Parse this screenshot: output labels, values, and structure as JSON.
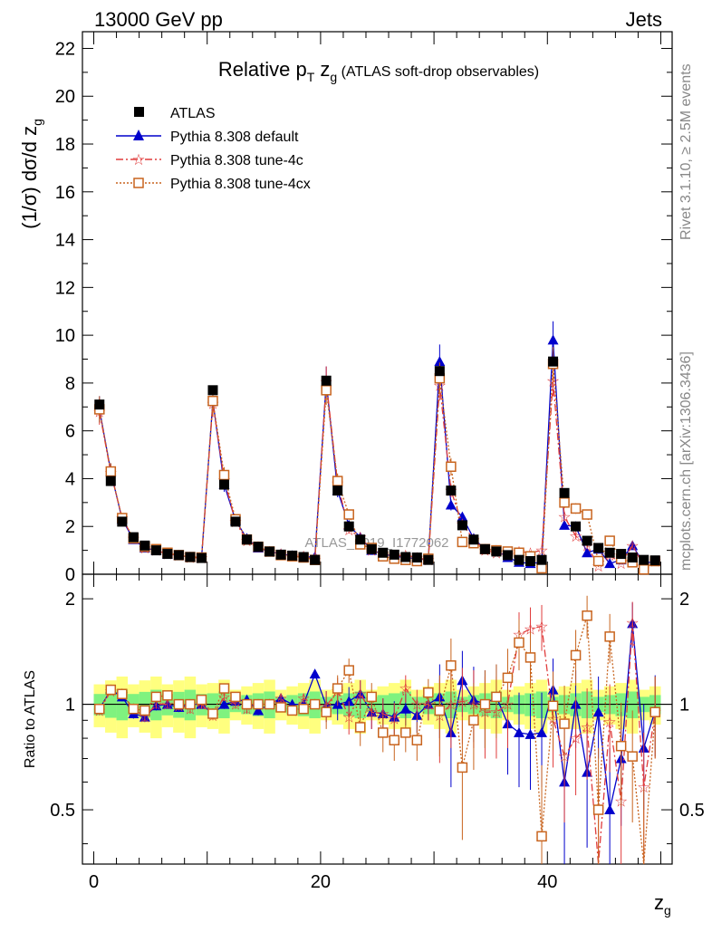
{
  "header": {
    "energy": "13000 GeV pp",
    "category": "Jets"
  },
  "side_labels": {
    "rivet": "Rivet 3.1.10, ≥ 2.5M events",
    "mcplots": "mcplots.cern.ch [arXiv:1306.3436]"
  },
  "watermark": "ATLAS_2019_I1772062",
  "chart_data": {
    "type": "scatter",
    "title": {
      "main": "Relative p",
      "sub_t": "T",
      "mid": " z",
      "sub_g": "g",
      "tail": " (ATLAS soft-drop observables)"
    },
    "ylabel_main": {
      "text": "(1/σ) dσ/d z",
      "sub": "g"
    },
    "ylabel_ratio": "Ratio to ATLAS",
    "xlabel": {
      "text": "z",
      "sub": "g"
    },
    "xlim": [
      -1,
      51
    ],
    "ylim": [
      0,
      22.7
    ],
    "ratio_ylim": [
      0.35,
      2.35
    ],
    "x_ticks": [
      "0",
      "20",
      "40"
    ],
    "y_ticks": [
      "0",
      "2",
      "4",
      "6",
      "8",
      "10",
      "12",
      "14",
      "16",
      "18",
      "20",
      "22"
    ],
    "ratio_ticks": [
      "0.5",
      "1",
      "2"
    ],
    "legend": [
      "ATLAS",
      "Pythia 8.308 default",
      "Pythia 8.308 tune-4c",
      "Pythia 8.308 tune-4cx"
    ],
    "colors": {
      "atlas": "#000000",
      "default": "#0000cc",
      "tune4c": "#e03c3c",
      "tune4cx": "#c8641e",
      "band_inner": "#7ff27f",
      "band_outer": "#ffff7f"
    },
    "x": [
      0.5,
      1.5,
      2.5,
      3.5,
      4.5,
      5.5,
      6.5,
      7.5,
      8.5,
      9.5,
      10.5,
      11.5,
      12.5,
      13.5,
      14.5,
      15.5,
      16.5,
      17.5,
      18.5,
      19.5,
      20.5,
      21.5,
      22.5,
      23.5,
      24.5,
      25.5,
      26.5,
      27.5,
      28.5,
      29.5,
      30.5,
      31.5,
      32.5,
      33.5,
      34.5,
      35.5,
      36.5,
      37.5,
      38.5,
      39.5,
      40.5,
      41.5,
      42.5,
      43.5,
      44.5,
      45.5,
      46.5,
      47.5,
      48.5,
      49.5
    ],
    "series": [
      {
        "name": "ATLAS",
        "values": [
          7.1,
          3.9,
          2.2,
          1.55,
          1.2,
          1.0,
          0.85,
          0.8,
          0.72,
          0.68,
          7.7,
          3.75,
          2.2,
          1.45,
          1.15,
          0.95,
          0.82,
          0.78,
          0.72,
          0.6,
          8.1,
          3.5,
          2.0,
          1.45,
          1.05,
          0.9,
          0.82,
          0.72,
          0.7,
          0.6,
          8.5,
          3.5,
          2.05,
          1.45,
          1.05,
          0.95,
          0.8,
          0.6,
          0.55,
          0.6,
          8.9,
          3.4,
          2.0,
          1.4,
          1.1,
          0.9,
          0.85,
          0.7,
          0.6,
          0.58
        ]
      },
      {
        "name": "Pythia 8.308 default",
        "values": [
          6.9,
          4.3,
          2.3,
          1.45,
          1.1,
          1.0,
          0.85,
          0.78,
          0.72,
          0.68,
          7.25,
          3.75,
          2.25,
          1.5,
          1.1,
          0.95,
          0.85,
          0.78,
          0.72,
          0.73,
          8.05,
          3.5,
          2.05,
          1.55,
          1.0,
          0.85,
          0.75,
          0.7,
          0.65,
          0.6,
          8.9,
          2.9,
          2.4,
          1.5,
          1.05,
          1.0,
          0.7,
          0.5,
          0.45,
          0.5,
          9.8,
          2.05,
          2.0,
          0.9,
          1.05,
          0.45,
          0.6,
          1.2,
          0.45,
          0.55
        ]
      },
      {
        "name": "Pythia 8.308 tune-4c",
        "values": [
          6.8,
          4.25,
          2.35,
          1.5,
          1.1,
          1.0,
          0.85,
          0.8,
          0.7,
          0.68,
          7.15,
          3.95,
          2.2,
          1.4,
          1.15,
          0.95,
          0.85,
          0.75,
          0.75,
          0.6,
          8.05,
          3.8,
          1.85,
          1.55,
          1.0,
          0.85,
          0.75,
          0.8,
          0.7,
          0.6,
          7.9,
          3.5,
          2.1,
          1.45,
          1.0,
          0.9,
          0.8,
          0.95,
          0.9,
          1.0,
          8.1,
          2.4,
          1.6,
          1.2,
          0.35,
          0.8,
          0.45,
          1.2,
          0.35,
          0.55
        ]
      },
      {
        "name": "Pythia 8.308 tune-4cx",
        "values": [
          6.9,
          4.3,
          2.35,
          1.5,
          1.15,
          1.05,
          0.9,
          0.8,
          0.72,
          0.7,
          7.25,
          4.15,
          2.3,
          1.45,
          1.15,
          0.95,
          0.8,
          0.75,
          0.7,
          0.6,
          7.7,
          3.9,
          2.5,
          1.25,
          1.1,
          0.75,
          0.65,
          0.6,
          0.55,
          0.65,
          8.2,
          4.5,
          1.35,
          1.3,
          1.05,
          1.0,
          0.95,
          0.9,
          0.75,
          0.25,
          8.8,
          3.0,
          2.75,
          2.5,
          0.55,
          1.4,
          0.65,
          0.5,
          0.2,
          0.55
        ]
      }
    ],
    "ratio_series": [
      {
        "name": "Pythia 8.308 default",
        "values": [
          0.97,
          1.1,
          1.05,
          0.94,
          0.92,
          0.99,
          1.0,
          0.98,
          1.0,
          1.0,
          0.94,
          1.0,
          1.02,
          1.03,
          0.96,
          1.0,
          1.04,
          1.0,
          1.0,
          1.22,
          0.99,
          1.0,
          1.02,
          1.07,
          0.95,
          0.94,
          0.92,
          0.97,
          0.93,
          1.0,
          1.05,
          0.83,
          1.17,
          1.03,
          1.0,
          1.05,
          0.88,
          0.83,
          0.82,
          0.83,
          1.1,
          0.6,
          1.0,
          0.64,
          0.95,
          0.5,
          0.7,
          1.7,
          0.75,
          0.96
        ]
      },
      {
        "name": "Pythia 8.308 tune-4c",
        "values": [
          0.96,
          1.09,
          1.07,
          0.97,
          0.92,
          1.0,
          1.0,
          0.99,
          0.97,
          1.0,
          0.93,
          1.05,
          1.0,
          0.97,
          1.0,
          1.0,
          1.04,
          0.96,
          1.04,
          1.0,
          0.99,
          1.09,
          0.92,
          1.07,
          0.95,
          0.94,
          0.91,
          1.11,
          1.0,
          1.0,
          0.93,
          1.0,
          1.02,
          1.0,
          0.95,
          0.95,
          1.0,
          1.58,
          1.64,
          1.67,
          0.91,
          0.71,
          0.8,
          0.86,
          0.32,
          0.89,
          0.53,
          1.71,
          0.58,
          0.95
        ]
      },
      {
        "name": "Pythia 8.308 tune-4cx",
        "values": [
          0.97,
          1.1,
          1.07,
          0.97,
          0.96,
          1.05,
          1.06,
          1.0,
          1.0,
          1.03,
          0.94,
          1.11,
          1.05,
          1.0,
          1.0,
          1.0,
          0.98,
          0.96,
          0.97,
          1.0,
          0.95,
          1.11,
          1.25,
          0.86,
          1.05,
          0.83,
          0.79,
          0.83,
          0.79,
          1.08,
          0.96,
          1.29,
          0.66,
          0.9,
          1.0,
          1.05,
          1.19,
          1.5,
          1.36,
          0.42,
          0.99,
          0.88,
          1.38,
          1.79,
          0.5,
          1.56,
          0.76,
          0.71,
          0.33,
          0.95
        ]
      }
    ]
  }
}
